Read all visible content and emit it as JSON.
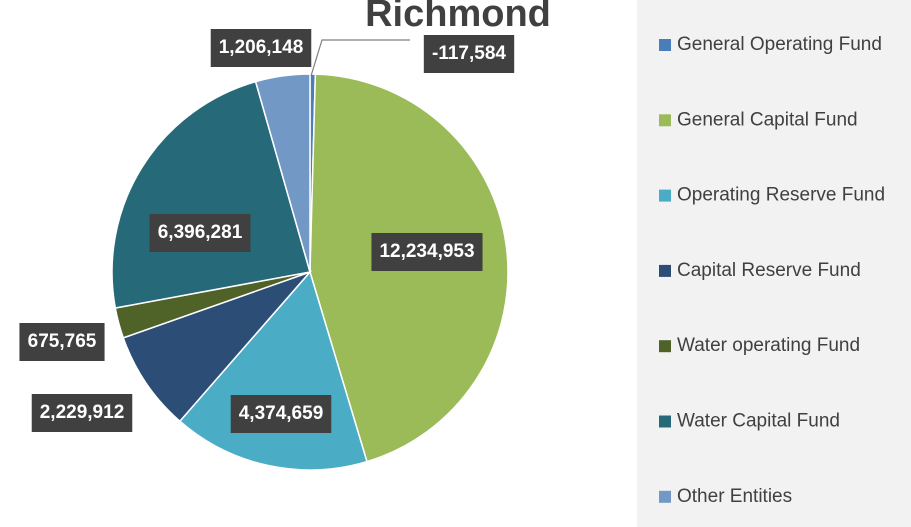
{
  "chart_data": {
    "type": "pie",
    "title": "Richmond",
    "categories": [
      "General Operating Fund",
      "General Capital Fund",
      "Operating Reserve Fund",
      "Capital Reserve Fund",
      "Water operating Fund",
      "Water Capital Fund",
      "Other Entities"
    ],
    "values": [
      -117584,
      12234953,
      4374659,
      2229912,
      675765,
      6396281,
      1206148
    ],
    "value_labels": [
      "-117,584",
      "12,234,953",
      "4,374,659",
      "2,229,912",
      "675,765",
      "6,396,281",
      "1,206,148"
    ],
    "colors": [
      "#4a7ebb",
      "#9bbb59",
      "#4bacc6",
      "#2c4d75",
      "#4f6228",
      "#266a7a",
      "#7299c6"
    ],
    "legend": "right"
  }
}
